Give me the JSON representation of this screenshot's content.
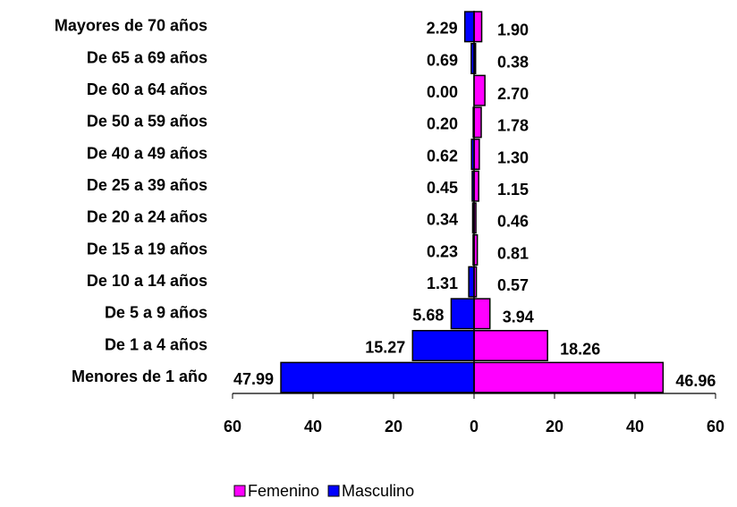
{
  "chart_data": {
    "type": "bar",
    "orientation": "horizontal",
    "categories": [
      "Mayores de 70 años",
      "De 65 a 69 años",
      "De 60 a 64 años",
      "De 50 a 59 años",
      "De 40 a 49 años",
      "De 25 a 39 años",
      "De 20 a 24 años",
      "De 15 a 19 años",
      "De 10 a 14 años",
      "De 5 a 9 años",
      "De 1 a 4 años",
      "Menores de 1 año"
    ],
    "series": [
      {
        "name": "Femenino",
        "color": "#ff00ff",
        "values": [
          1.9,
          0.38,
          2.7,
          1.78,
          1.3,
          1.15,
          0.46,
          0.81,
          0.57,
          3.94,
          18.26,
          46.96
        ],
        "value_labels": [
          "1.90",
          "0.38",
          "2.70",
          "1.78",
          "1.30",
          "1.15",
          "0.46",
          "0.81",
          "0.57",
          "3.94",
          "18.26",
          "46.96"
        ]
      },
      {
        "name": "Masculino",
        "color": "#0000ff",
        "values": [
          -2.29,
          -0.69,
          0,
          -0.2,
          -0.62,
          -0.45,
          -0.34,
          -0.23,
          -1.31,
          -5.68,
          -15.27,
          -47.99
        ],
        "value_labels": [
          "2.29",
          "0.69",
          "0.00",
          "0.20",
          "0.62",
          "0.45",
          "0.34",
          "0.23",
          "1.31",
          "5.68",
          "15.27",
          "47.99"
        ]
      }
    ],
    "xlim": [
      -60,
      60
    ],
    "xticks": [
      {
        "value": -60,
        "label": "60"
      },
      {
        "value": -40,
        "label": "40"
      },
      {
        "value": -20,
        "label": "20"
      },
      0,
      20,
      40,
      60
    ],
    "legend": "bottom"
  }
}
